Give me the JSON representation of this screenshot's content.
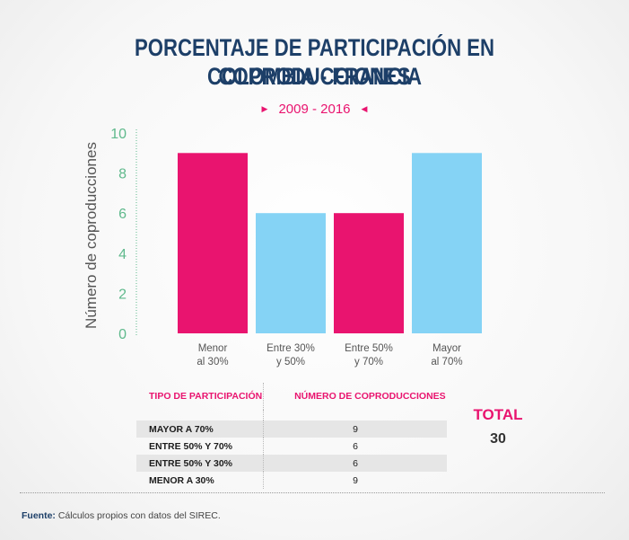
{
  "header": {
    "title_line1": "PORCENTAJE DE PARTICIPACIÓN EN COPRODUCCIONES",
    "title_line2": "COLOMBIA - FRANCIA",
    "period": "2009 - 2016"
  },
  "colors": {
    "magenta": "#e9146f",
    "light_blue": "#85d3f5",
    "axis_green": "#5fb98c",
    "navy": "#1d3f68"
  },
  "chart_data": {
    "type": "bar",
    "categories": [
      "Menor\nal 30%",
      "Entre 30%\ny 50%",
      "Entre 50%\ny 70%",
      "Mayor\nal 70%"
    ],
    "values": [
      9,
      6,
      6,
      9
    ],
    "bar_colors": [
      "#e9146f",
      "#85d3f5",
      "#e9146f",
      "#85d3f5"
    ],
    "ylabel": "Número de coproducciones",
    "ylim": [
      0,
      10
    ],
    "yticks": [
      0,
      2,
      4,
      6,
      8,
      10
    ],
    "grid": false,
    "legend": "none"
  },
  "table": {
    "headers": [
      "TIPO DE PARTICIPACIÓN",
      "NÚMERO DE COPRODUCCIONES"
    ],
    "rows": [
      {
        "label": "MAYOR A 70%",
        "value": "9"
      },
      {
        "label": "ENTRE 50% Y 70%",
        "value": "6"
      },
      {
        "label": "ENTRE 50% Y 30%",
        "value": "6"
      },
      {
        "label": "MENOR A 30%",
        "value": "9"
      }
    ]
  },
  "total": {
    "label": "TOTAL",
    "value": "30"
  },
  "source": {
    "prefix": "Fuente:",
    "text": " Cálculos propios con datos del SIREC."
  }
}
